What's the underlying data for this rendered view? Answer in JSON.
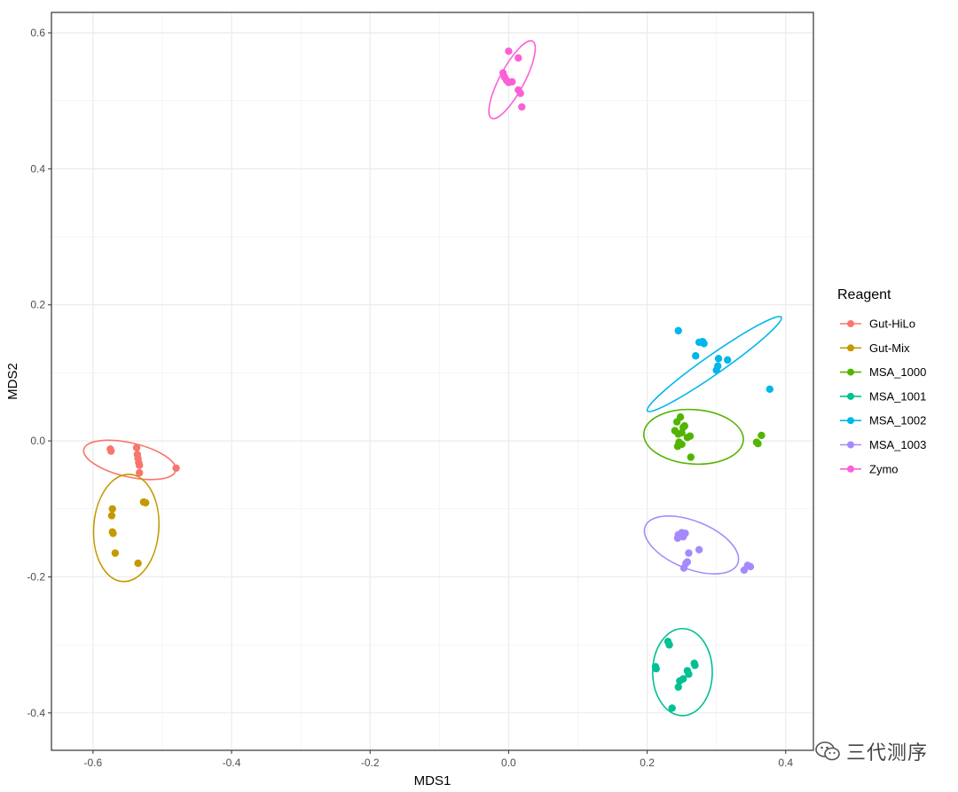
{
  "chart_data": {
    "type": "scatter",
    "xlabel": "MDS1",
    "ylabel": "MDS2",
    "xlim": [
      -0.66,
      0.44
    ],
    "ylim": [
      -0.455,
      0.63
    ],
    "x_ticks": [
      -0.6,
      -0.4,
      -0.2,
      0.0,
      0.2,
      0.4
    ],
    "x_tick_labels": [
      "-0.6",
      "-0.4",
      "-0.2",
      "0.0",
      "0.2",
      "0.4"
    ],
    "y_ticks": [
      -0.4,
      -0.2,
      0.0,
      0.2,
      0.4,
      0.6
    ],
    "y_tick_labels": [
      "-0.4",
      "-0.2",
      "0.0",
      "0.2",
      "0.4",
      "0.6"
    ],
    "grid": true,
    "legend_title": "Reagent",
    "legend_position": "right",
    "series": [
      {
        "name": "Gut-HiLo",
        "color": "#F8766D",
        "points": [
          [
            -0.575,
            -0.012
          ],
          [
            -0.574,
            -0.015
          ],
          [
            -0.537,
            -0.01
          ],
          [
            -0.536,
            -0.02
          ],
          [
            -0.535,
            -0.026
          ],
          [
            -0.534,
            -0.032
          ],
          [
            -0.533,
            -0.036
          ],
          [
            -0.533,
            -0.047
          ],
          [
            -0.48,
            -0.04
          ]
        ],
        "ellipse": {
          "cx": -0.547,
          "cy": -0.028,
          "rx": 0.068,
          "ry": 0.025,
          "angle_deg": -13
        }
      },
      {
        "name": "Gut-Mix",
        "color": "#C49A00",
        "points": [
          [
            -0.572,
            -0.1
          ],
          [
            -0.573,
            -0.11
          ],
          [
            -0.572,
            -0.134
          ],
          [
            -0.571,
            -0.136
          ],
          [
            -0.568,
            -0.165
          ],
          [
            -0.527,
            -0.09
          ],
          [
            -0.524,
            -0.091
          ],
          [
            -0.535,
            -0.18
          ]
        ],
        "ellipse": {
          "cx": -0.552,
          "cy": -0.128,
          "rx": 0.047,
          "ry": 0.079,
          "angle_deg": -4
        }
      },
      {
        "name": "MSA_1000",
        "color": "#53B400",
        "points": [
          [
            0.243,
            0.028
          ],
          [
            0.248,
            0.035
          ],
          [
            0.252,
            0.02
          ],
          [
            0.254,
            0.022
          ],
          [
            0.24,
            0.015
          ],
          [
            0.245,
            0.01
          ],
          [
            0.25,
            0.012
          ],
          [
            0.258,
            0.005
          ],
          [
            0.262,
            0.007
          ],
          [
            0.246,
            -0.002
          ],
          [
            0.25,
            -0.005
          ],
          [
            0.263,
            -0.024
          ],
          [
            0.244,
            -0.008
          ],
          [
            0.36,
            -0.004
          ],
          [
            0.365,
            0.008
          ],
          [
            0.358,
            -0.002
          ]
        ],
        "ellipse": {
          "cx": 0.267,
          "cy": 0.006,
          "rx": 0.072,
          "ry": 0.04,
          "angle_deg": -4
        }
      },
      {
        "name": "MSA_1001",
        "color": "#00C094",
        "points": [
          [
            0.23,
            -0.295
          ],
          [
            0.232,
            -0.3
          ],
          [
            0.213,
            -0.335
          ],
          [
            0.212,
            -0.332
          ],
          [
            0.258,
            -0.338
          ],
          [
            0.26,
            -0.343
          ],
          [
            0.252,
            -0.35
          ],
          [
            0.247,
            -0.353
          ],
          [
            0.245,
            -0.362
          ],
          [
            0.268,
            -0.327
          ],
          [
            0.269,
            -0.33
          ],
          [
            0.236,
            -0.393
          ]
        ],
        "ellipse": {
          "cx": 0.251,
          "cy": -0.34,
          "rx": 0.043,
          "ry": 0.064,
          "angle_deg": 0
        }
      },
      {
        "name": "MSA_1002",
        "color": "#00B6EB",
        "points": [
          [
            0.245,
            0.162
          ],
          [
            0.275,
            0.145
          ],
          [
            0.282,
            0.143
          ],
          [
            0.28,
            0.146
          ],
          [
            0.27,
            0.125
          ],
          [
            0.303,
            0.121
          ],
          [
            0.302,
            0.11
          ],
          [
            0.3,
            0.104
          ],
          [
            0.316,
            0.119
          ],
          [
            0.377,
            0.076
          ]
        ],
        "ellipse": {
          "cx": 0.297,
          "cy": 0.113,
          "rx": 0.118,
          "ry": 0.014,
          "angle_deg": 35
        }
      },
      {
        "name": "MSA_1003",
        "color": "#A58AFF",
        "points": [
          [
            0.245,
            -0.138
          ],
          [
            0.248,
            -0.14
          ],
          [
            0.25,
            -0.135
          ],
          [
            0.252,
            -0.141
          ],
          [
            0.244,
            -0.143
          ],
          [
            0.255,
            -0.136
          ],
          [
            0.26,
            -0.165
          ],
          [
            0.258,
            -0.178
          ],
          [
            0.253,
            -0.187
          ],
          [
            0.256,
            -0.18
          ],
          [
            0.275,
            -0.16
          ],
          [
            0.34,
            -0.19
          ],
          [
            0.345,
            -0.183
          ],
          [
            0.349,
            -0.185
          ]
        ],
        "ellipse": {
          "cx": 0.264,
          "cy": -0.153,
          "rx": 0.072,
          "ry": 0.035,
          "angle_deg": -22
        }
      },
      {
        "name": "Zymo",
        "color": "#FB61D7",
        "points": [
          [
            0.0,
            0.573
          ],
          [
            0.014,
            0.563
          ],
          [
            -0.008,
            0.541
          ],
          [
            -0.006,
            0.535
          ],
          [
            -0.003,
            0.53
          ],
          [
            0.005,
            0.528
          ],
          [
            0.0,
            0.527
          ],
          [
            0.014,
            0.516
          ],
          [
            0.017,
            0.511
          ],
          [
            0.019,
            0.491
          ]
        ],
        "ellipse": {
          "cx": 0.005,
          "cy": 0.531,
          "rx": 0.063,
          "ry": 0.018,
          "angle_deg": 62
        }
      }
    ]
  },
  "watermark": {
    "text": "三代测序",
    "icon": "wechat-icon"
  }
}
